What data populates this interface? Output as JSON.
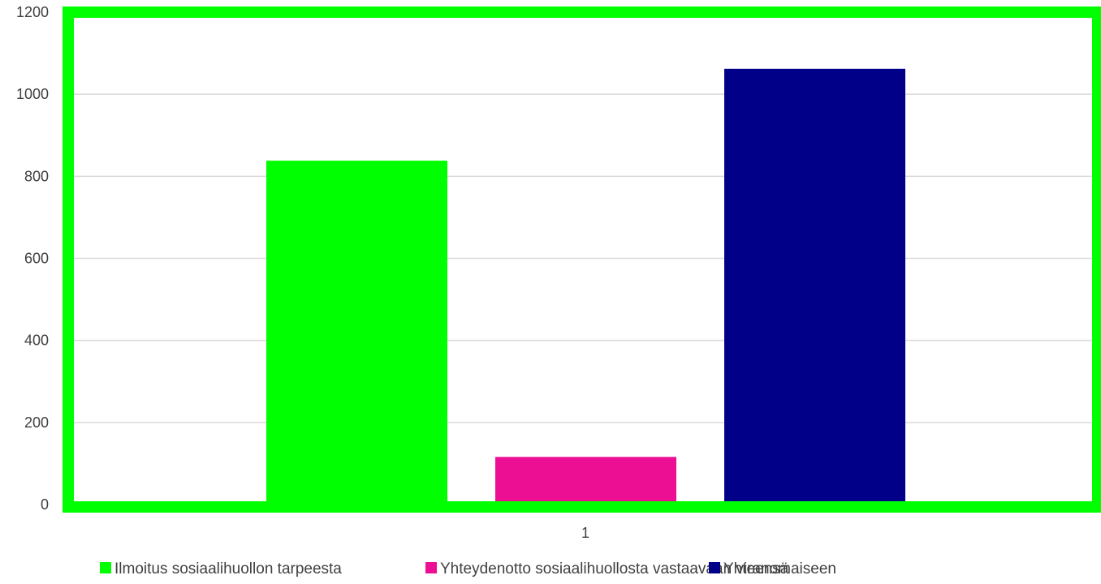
{
  "chart_data": {
    "type": "bar",
    "categories": [
      "1"
    ],
    "series": [
      {
        "name": "Ilmoitus sosiaalihuollon tarpeesta",
        "values": [
          838
        ],
        "color": "#00ff00"
      },
      {
        "name": "Yhteydenotto sosiaalihuollosta vastaavaan viranomaiseen",
        "values": [
          116
        ],
        "color": "#ec0f93"
      },
      {
        "name": "Yhteensä",
        "values": [
          1062
        ],
        "color": "#000089"
      }
    ],
    "yticks": [
      0,
      200,
      400,
      600,
      800,
      1000,
      1200
    ],
    "ylim": [
      0,
      1200
    ],
    "grid": true,
    "legend": "bottom",
    "plot_border_color": "#00ff00",
    "gridline_color": "#d9d9d9"
  }
}
